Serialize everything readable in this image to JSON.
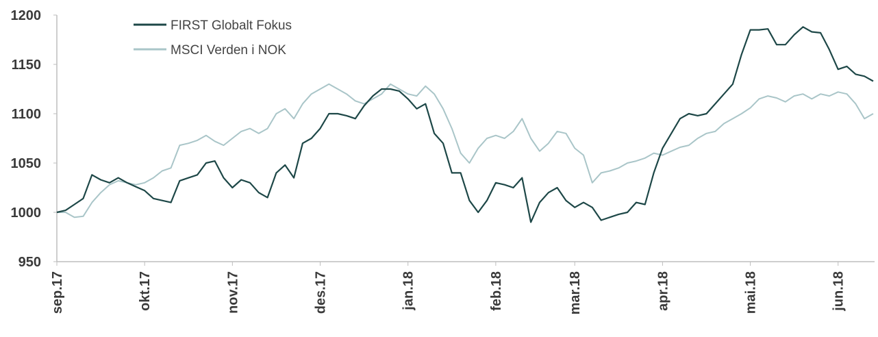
{
  "chart_data": {
    "type": "line",
    "categories": [
      "sep.17",
      null,
      null,
      null,
      null,
      null,
      null,
      null,
      null,
      null,
      "okt.17",
      null,
      null,
      null,
      null,
      null,
      null,
      null,
      null,
      null,
      "nov.17",
      null,
      null,
      null,
      null,
      null,
      null,
      null,
      null,
      null,
      "des.17",
      null,
      null,
      null,
      null,
      null,
      null,
      null,
      null,
      null,
      "jan.18",
      null,
      null,
      null,
      null,
      null,
      null,
      null,
      null,
      null,
      "feb.18",
      null,
      null,
      null,
      null,
      null,
      null,
      null,
      null,
      "mar.18",
      null,
      null,
      null,
      null,
      null,
      null,
      null,
      null,
      null,
      "apr.18",
      null,
      null,
      null,
      null,
      null,
      null,
      null,
      null,
      null,
      "mai.18",
      null,
      null,
      null,
      null,
      null,
      null,
      null,
      null,
      null,
      "jun.18",
      null,
      null,
      null,
      null
    ],
    "series": [
      {
        "name": "FIRST Globalt Fokus",
        "color": "#1d4747",
        "values": [
          1000,
          1002,
          1008,
          1014,
          1038,
          1033,
          1030,
          1035,
          1030,
          1026,
          1022,
          1014,
          1012,
          1010,
          1032,
          1035,
          1038,
          1050,
          1052,
          1035,
          1025,
          1033,
          1030,
          1020,
          1015,
          1040,
          1048,
          1035,
          1070,
          1075,
          1085,
          1100,
          1100,
          1098,
          1095,
          1108,
          1118,
          1125,
          1125,
          1123,
          1115,
          1105,
          1110,
          1080,
          1070,
          1040,
          1040,
          1012,
          1000,
          1012,
          1030,
          1028,
          1025,
          1035,
          990,
          1010,
          1020,
          1025,
          1012,
          1005,
          1010,
          1005,
          992,
          995,
          998,
          1000,
          1010,
          1008,
          1040,
          1065,
          1080,
          1095,
          1100,
          1098,
          1100,
          1110,
          1120,
          1130,
          1160,
          1185,
          1185,
          1186,
          1170,
          1170,
          1180,
          1188,
          1183,
          1182,
          1165,
          1145,
          1148,
          1140,
          1138,
          1133
        ]
      },
      {
        "name": "MSCI Verden i NOK",
        "color": "#a9c5c8",
        "values": [
          1000,
          1000,
          995,
          996,
          1010,
          1020,
          1028,
          1032,
          1030,
          1028,
          1030,
          1035,
          1042,
          1045,
          1068,
          1070,
          1073,
          1078,
          1072,
          1068,
          1075,
          1082,
          1085,
          1080,
          1085,
          1100,
          1105,
          1095,
          1110,
          1120,
          1125,
          1130,
          1125,
          1120,
          1113,
          1110,
          1115,
          1120,
          1130,
          1125,
          1120,
          1118,
          1128,
          1120,
          1105,
          1085,
          1060,
          1050,
          1065,
          1075,
          1078,
          1075,
          1082,
          1095,
          1075,
          1062,
          1070,
          1082,
          1080,
          1065,
          1058,
          1030,
          1040,
          1042,
          1045,
          1050,
          1052,
          1055,
          1060,
          1058,
          1062,
          1066,
          1068,
          1075,
          1080,
          1082,
          1090,
          1095,
          1100,
          1106,
          1115,
          1118,
          1116,
          1112,
          1118,
          1120,
          1115,
          1120,
          1118,
          1122,
          1120,
          1110,
          1095,
          1100
        ]
      }
    ],
    "ylim": [
      950,
      1200
    ],
    "yticks": [
      950,
      1000,
      1050,
      1100,
      1150,
      1200
    ],
    "legend": "top-left",
    "grid": false
  }
}
